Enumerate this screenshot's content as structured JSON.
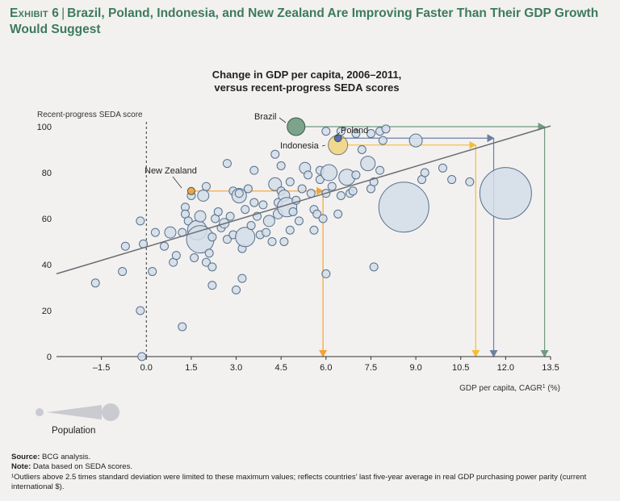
{
  "header": {
    "exhibit_label": "Exhibit 6",
    "title": "Brazil, Poland, Indonesia, and New Zealand Are Improving Faster Than Their GDP Growth Would Suggest"
  },
  "legend": {
    "population_label": "Population"
  },
  "footnotes": {
    "source_label": "Source:",
    "source_text": " BCG analysis.",
    "note_label": "Note:",
    "note_text": " Data based on SEDA scores.",
    "footnote_1": "¹Outliers above 2.5 times standard deviation were limited to these maximum values; reflects countries’ last five-year average in real GDP purchasing power parity (current international $)."
  },
  "colors": {
    "background": "#f2f1ef",
    "bubble_fill": "#d3dde7",
    "bubble_stroke": "#57708d",
    "trend": "#6b6e76",
    "brazil": "#6f9a7f",
    "poland": "#4a63b1",
    "indonesia": "#f2c23e",
    "new_zealand": "#f2a23a",
    "brazil_arrow": "#6f9a7f",
    "poland_arrow": "#6b7fa6",
    "indonesia_arrow": "#f4bc3a",
    "nz_arrow": "#f2a23a"
  },
  "chart_data": {
    "type": "scatter",
    "title": "Change in GDP per capita, 2006–2011,",
    "subtitle": "versus recent-progress SEDA scores",
    "ylabel": "Recent-progress SEDA score",
    "xlabel": "GDP per capita, CAGR",
    "xlabel_sup": "1",
    "xlabel_unit": " (%)",
    "xlim": [
      -3.0,
      13.5
    ],
    "ylim": [
      0,
      100
    ],
    "x_ticks": [
      "–1.5",
      "0.0",
      "1.5",
      "3.0",
      "4.5",
      "6.0",
      "7.5",
      "9.0",
      "10.5",
      "12.0",
      "13.5"
    ],
    "x_tick_values": [
      -1.5,
      0,
      1.5,
      3,
      4.5,
      6,
      7.5,
      9,
      10.5,
      12,
      13.5
    ],
    "y_ticks": [
      "0",
      "20",
      "40",
      "60",
      "80",
      "100"
    ],
    "y_tick_values": [
      0,
      20,
      40,
      60,
      80,
      100
    ],
    "trend_line": {
      "x": [
        -3.0,
        13.5
      ],
      "y": [
        36,
        100.3
      ]
    },
    "zero_line_x": 0,
    "highlighted": [
      {
        "name": "Brazil",
        "x": 5.0,
        "y": 100,
        "size": 11,
        "arrow_to_x": 13.3,
        "arrow_to_y": 0
      },
      {
        "name": "Poland",
        "x": 6.4,
        "y": 95,
        "size": 4.5,
        "arrow_to_x": 11.6,
        "arrow_to_y": 0
      },
      {
        "name": "Indonesia",
        "x": 6.4,
        "y": 92,
        "size": 12,
        "arrow_to_x": 11.0,
        "arrow_to_y": 0
      },
      {
        "name": "New Zealand",
        "x": 1.5,
        "y": 72,
        "size": 4.5,
        "arrow_to_x": 5.9,
        "arrow_to_y": 0
      }
    ],
    "points": [
      {
        "x": -1.7,
        "y": 32,
        "size": 5
      },
      {
        "x": -0.8,
        "y": 37,
        "size": 5
      },
      {
        "x": -0.7,
        "y": 48,
        "size": 5
      },
      {
        "x": -0.2,
        "y": 59,
        "size": 5
      },
      {
        "x": -0.1,
        "y": 49,
        "size": 5
      },
      {
        "x": -0.2,
        "y": 20,
        "size": 5
      },
      {
        "x": -0.15,
        "y": 0,
        "size": 5
      },
      {
        "x": 0.2,
        "y": 37,
        "size": 5
      },
      {
        "x": 0.6,
        "y": 48,
        "size": 5
      },
      {
        "x": 0.8,
        "y": 54,
        "size": 7
      },
      {
        "x": 0.9,
        "y": 41,
        "size": 5
      },
      {
        "x": 1.0,
        "y": 44,
        "size": 5
      },
      {
        "x": 1.2,
        "y": 54,
        "size": 5
      },
      {
        "x": 1.3,
        "y": 65,
        "size": 5
      },
      {
        "x": 1.3,
        "y": 62,
        "size": 5
      },
      {
        "x": 1.4,
        "y": 59,
        "size": 5
      },
      {
        "x": 1.5,
        "y": 70,
        "size": 5
      },
      {
        "x": 1.6,
        "y": 43,
        "size": 5
      },
      {
        "x": 1.7,
        "y": 55,
        "size": 12
      },
      {
        "x": 1.8,
        "y": 51,
        "size": 17
      },
      {
        "x": 1.8,
        "y": 61,
        "size": 7
      },
      {
        "x": 1.9,
        "y": 70,
        "size": 7
      },
      {
        "x": 2.0,
        "y": 74,
        "size": 5
      },
      {
        "x": 2.0,
        "y": 41,
        "size": 5
      },
      {
        "x": 2.1,
        "y": 45,
        "size": 5
      },
      {
        "x": 2.2,
        "y": 39,
        "size": 5
      },
      {
        "x": 2.2,
        "y": 31,
        "size": 5
      },
      {
        "x": 2.3,
        "y": 60,
        "size": 5
      },
      {
        "x": 2.4,
        "y": 63,
        "size": 5
      },
      {
        "x": 2.5,
        "y": 56,
        "size": 5
      },
      {
        "x": 2.6,
        "y": 58,
        "size": 6
      },
      {
        "x": 2.7,
        "y": 51,
        "size": 5
      },
      {
        "x": 2.7,
        "y": 84,
        "size": 5
      },
      {
        "x": 2.8,
        "y": 61,
        "size": 5
      },
      {
        "x": 2.9,
        "y": 72,
        "size": 5
      },
      {
        "x": 2.9,
        "y": 53,
        "size": 5
      },
      {
        "x": 3.0,
        "y": 29,
        "size": 5
      },
      {
        "x": 3.1,
        "y": 70,
        "size": 9
      },
      {
        "x": 3.1,
        "y": 71,
        "size": 5
      },
      {
        "x": 3.2,
        "y": 34,
        "size": 5
      },
      {
        "x": 3.2,
        "y": 47,
        "size": 5
      },
      {
        "x": 3.3,
        "y": 52,
        "size": 12
      },
      {
        "x": 3.3,
        "y": 64,
        "size": 5
      },
      {
        "x": 3.4,
        "y": 73,
        "size": 5
      },
      {
        "x": 3.5,
        "y": 57,
        "size": 5
      },
      {
        "x": 3.6,
        "y": 81,
        "size": 5
      },
      {
        "x": 3.7,
        "y": 61,
        "size": 5
      },
      {
        "x": 3.8,
        "y": 53,
        "size": 5
      },
      {
        "x": 3.9,
        "y": 66,
        "size": 5
      },
      {
        "x": 4.0,
        "y": 54,
        "size": 5
      },
      {
        "x": 4.1,
        "y": 59,
        "size": 7
      },
      {
        "x": 4.2,
        "y": 50,
        "size": 5
      },
      {
        "x": 4.3,
        "y": 75,
        "size": 8
      },
      {
        "x": 4.4,
        "y": 67,
        "size": 5
      },
      {
        "x": 4.4,
        "y": 62,
        "size": 6
      },
      {
        "x": 4.5,
        "y": 72,
        "size": 5
      },
      {
        "x": 4.6,
        "y": 70,
        "size": 7
      },
      {
        "x": 4.6,
        "y": 50,
        "size": 5
      },
      {
        "x": 4.7,
        "y": 65,
        "size": 12
      },
      {
        "x": 4.8,
        "y": 76,
        "size": 5
      },
      {
        "x": 4.8,
        "y": 55,
        "size": 5
      },
      {
        "x": 4.9,
        "y": 63,
        "size": 5
      },
      {
        "x": 5.0,
        "y": 68,
        "size": 5
      },
      {
        "x": 4.3,
        "y": 88,
        "size": 5
      },
      {
        "x": 4.5,
        "y": 83,
        "size": 5
      },
      {
        "x": 5.1,
        "y": 59,
        "size": 5
      },
      {
        "x": 5.2,
        "y": 73,
        "size": 5
      },
      {
        "x": 5.3,
        "y": 82,
        "size": 7
      },
      {
        "x": 5.4,
        "y": 79,
        "size": 5
      },
      {
        "x": 5.5,
        "y": 71,
        "size": 5
      },
      {
        "x": 5.6,
        "y": 64,
        "size": 5
      },
      {
        "x": 5.7,
        "y": 62,
        "size": 5
      },
      {
        "x": 5.8,
        "y": 77,
        "size": 5
      },
      {
        "x": 5.8,
        "y": 81,
        "size": 5
      },
      {
        "x": 5.9,
        "y": 60,
        "size": 5
      },
      {
        "x": 6.0,
        "y": 71,
        "size": 5
      },
      {
        "x": 6.0,
        "y": 36,
        "size": 5
      },
      {
        "x": 6.1,
        "y": 80,
        "size": 10
      },
      {
        "x": 6.2,
        "y": 74,
        "size": 5
      },
      {
        "x": 6.4,
        "y": 62,
        "size": 5
      },
      {
        "x": 6.5,
        "y": 70,
        "size": 5
      },
      {
        "x": 6.7,
        "y": 78,
        "size": 10
      },
      {
        "x": 6.8,
        "y": 71,
        "size": 5
      },
      {
        "x": 6.9,
        "y": 72,
        "size": 5
      },
      {
        "x": 7.0,
        "y": 79,
        "size": 5
      },
      {
        "x": 7.2,
        "y": 90,
        "size": 5
      },
      {
        "x": 7.4,
        "y": 84,
        "size": 9
      },
      {
        "x": 7.5,
        "y": 73,
        "size": 5
      },
      {
        "x": 7.6,
        "y": 76,
        "size": 5
      },
      {
        "x": 7.6,
        "y": 39,
        "size": 5
      },
      {
        "x": 7.8,
        "y": 81,
        "size": 5
      },
      {
        "x": 7.9,
        "y": 94,
        "size": 5
      },
      {
        "x": 6.0,
        "y": 98,
        "size": 5
      },
      {
        "x": 6.5,
        "y": 98,
        "size": 5
      },
      {
        "x": 7.0,
        "y": 97,
        "size": 5
      },
      {
        "x": 7.5,
        "y": 97,
        "size": 5
      },
      {
        "x": 7.8,
        "y": 98,
        "size": 5
      },
      {
        "x": 8.0,
        "y": 99,
        "size": 5
      },
      {
        "x": 9.0,
        "y": 94,
        "size": 8
      },
      {
        "x": 9.2,
        "y": 77,
        "size": 5
      },
      {
        "x": 9.3,
        "y": 80,
        "size": 5
      },
      {
        "x": 9.9,
        "y": 82,
        "size": 5
      },
      {
        "x": 10.2,
        "y": 77,
        "size": 5
      },
      {
        "x": 8.6,
        "y": 65,
        "size": 31
      },
      {
        "x": 12.0,
        "y": 71,
        "size": 32
      },
      {
        "x": 10.8,
        "y": 76,
        "size": 5
      },
      {
        "x": 1.2,
        "y": 13,
        "size": 5
      },
      {
        "x": 0.3,
        "y": 54,
        "size": 5
      },
      {
        "x": 5.6,
        "y": 55,
        "size": 5
      },
      {
        "x": 3.6,
        "y": 67,
        "size": 5
      },
      {
        "x": 2.2,
        "y": 52,
        "size": 5
      }
    ]
  }
}
